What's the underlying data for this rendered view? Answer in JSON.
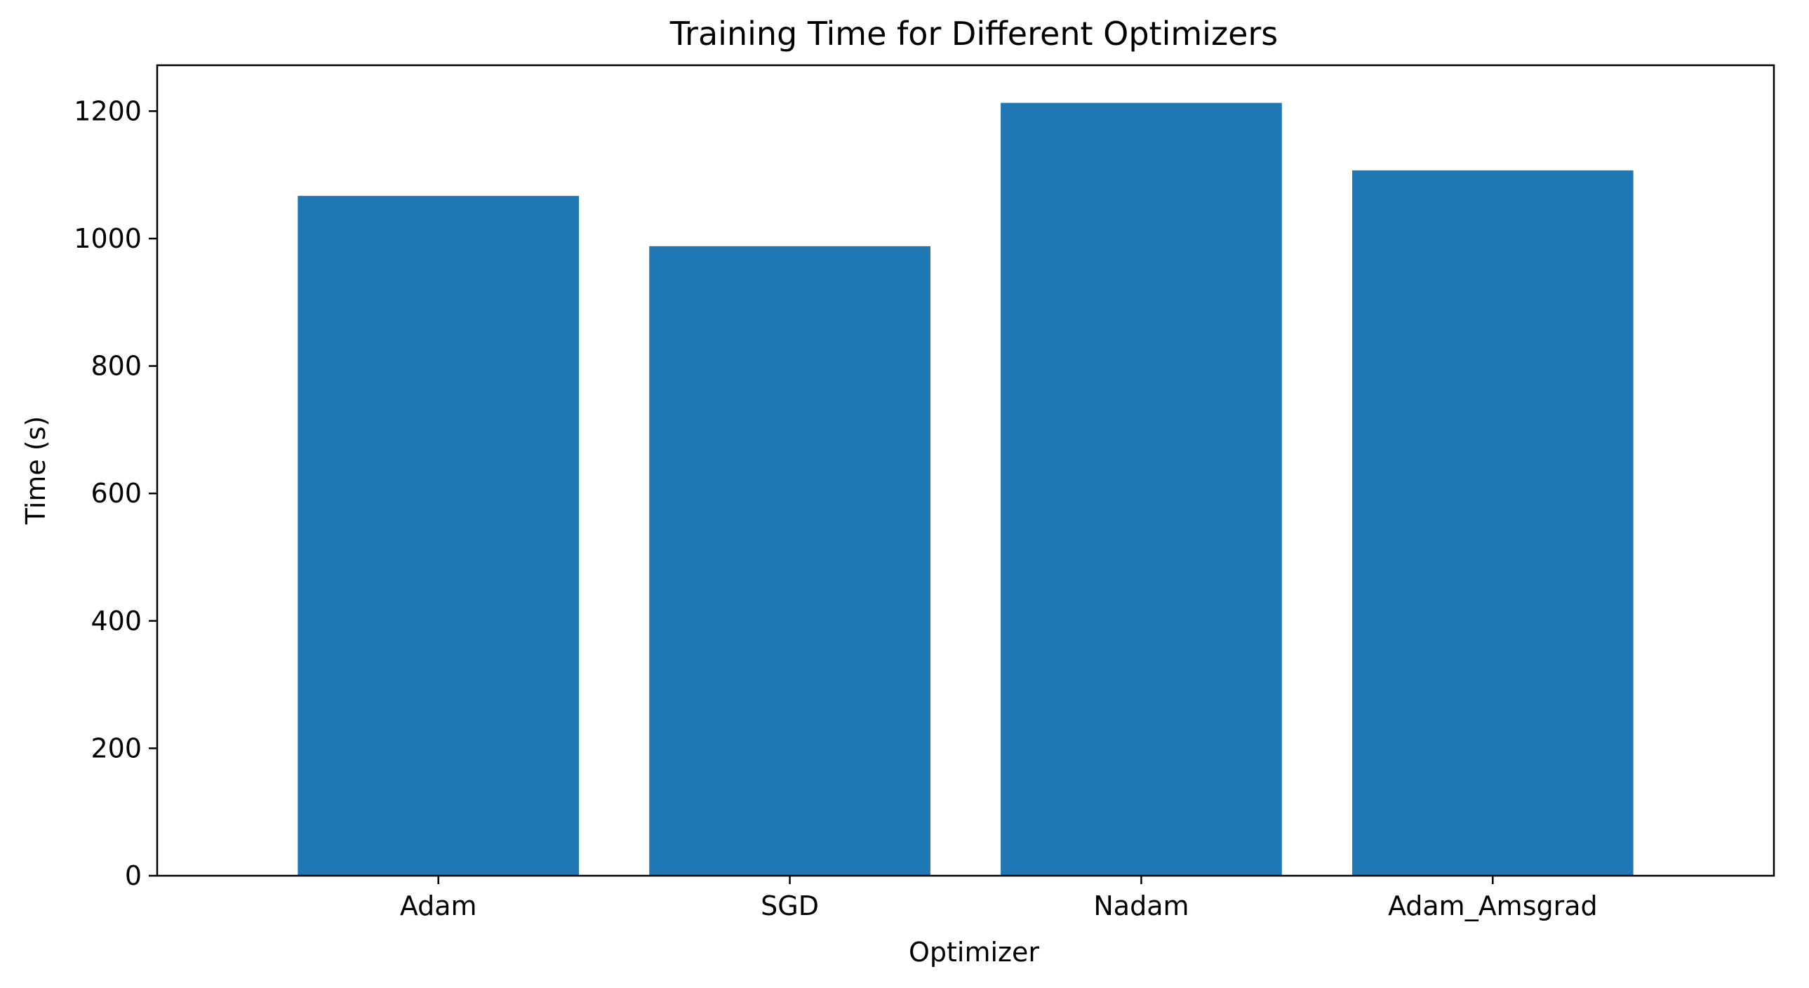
{
  "chart_data": {
    "type": "bar",
    "title": "Training Time for Different Optimizers",
    "xlabel": "Optimizer",
    "ylabel": "Time (s)",
    "categories": [
      "Adam",
      "SGD",
      "Nadam",
      "Adam_Amsgrad"
    ],
    "values": [
      1067,
      988,
      1213,
      1107
    ],
    "ylim": [
      0,
      1272
    ],
    "yticks": [
      0,
      200,
      400,
      600,
      800,
      1000,
      1200
    ],
    "grid": false,
    "legend": "none",
    "bar_color": "#1f77b4"
  }
}
